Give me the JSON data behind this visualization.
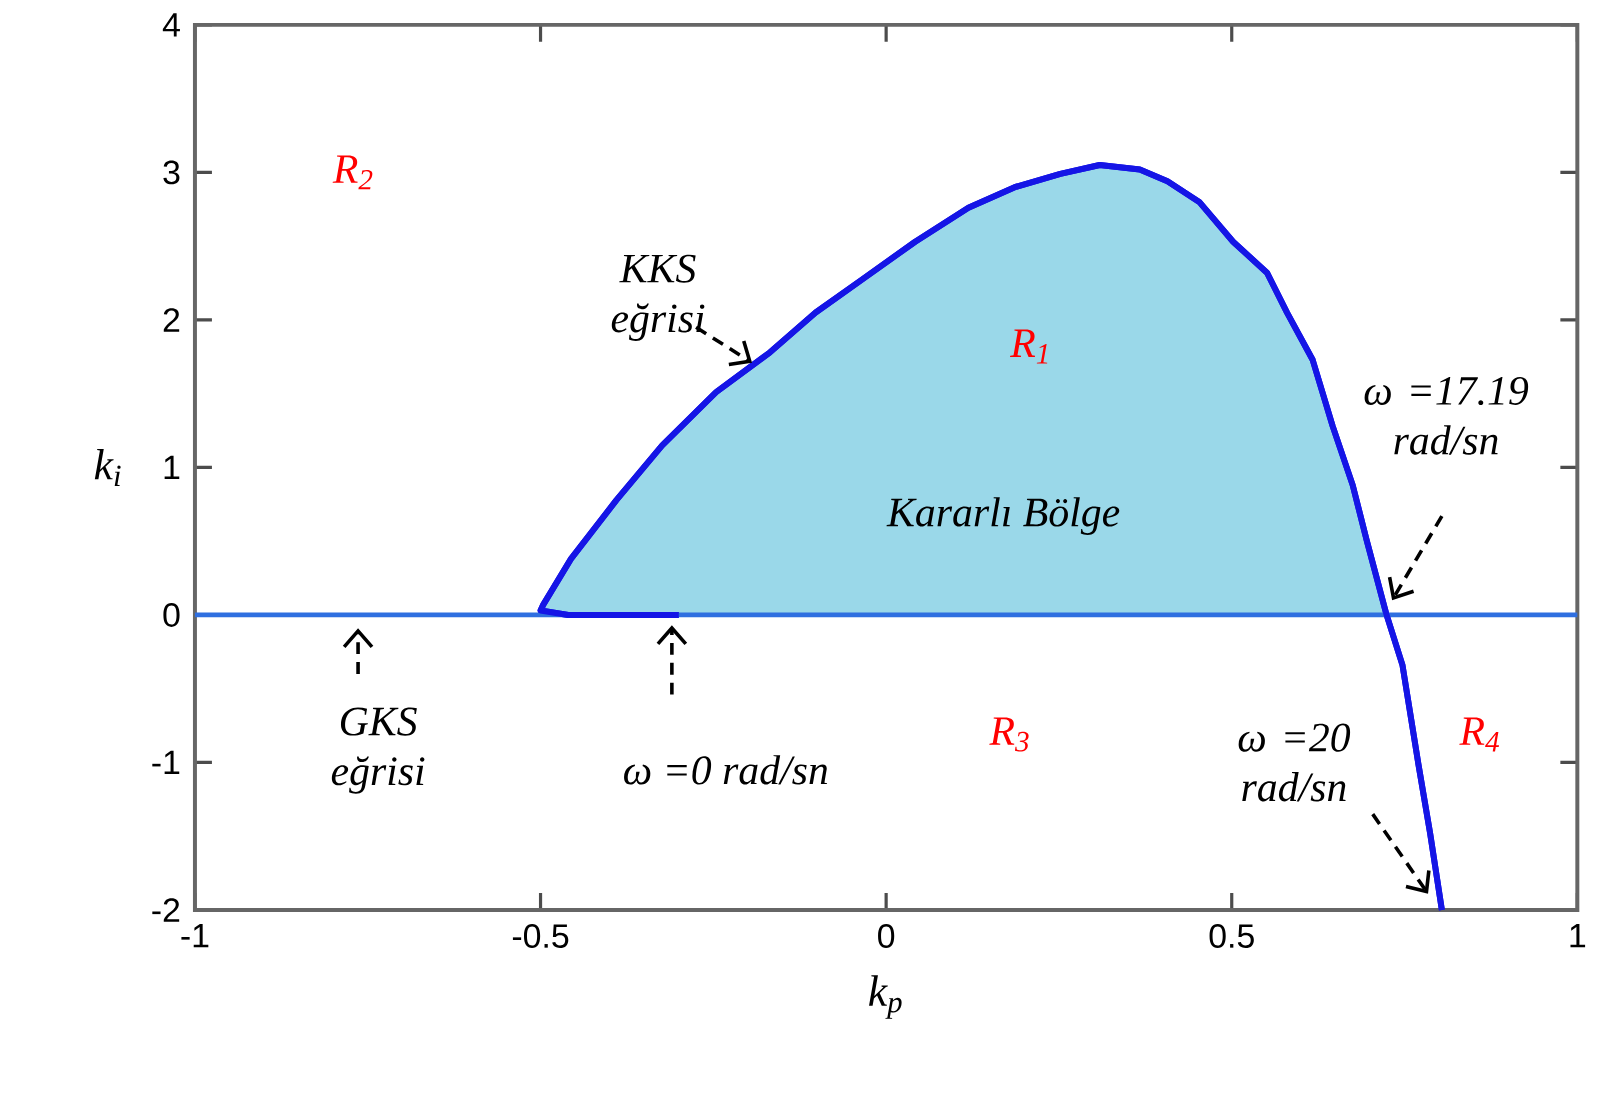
{
  "chart_data": {
    "type": "line",
    "xlabel": "k$_{p}$",
    "ylabel": "k$_{i}$",
    "xlim": [
      -1,
      1
    ],
    "ylim": [
      -2,
      4
    ],
    "xticks": [
      -1,
      -0.5,
      0,
      0.5,
      1
    ],
    "yticks": [
      -2,
      -1,
      0,
      1,
      2,
      3,
      4
    ],
    "series": [
      {
        "type": "area",
        "color": "#9ad8e9",
        "x": [
          -0.5,
          -0.496,
          -0.456,
          -0.39,
          -0.324,
          -0.246,
          -0.168,
          -0.102,
          -0.036,
          0.042,
          0.119,
          0.186,
          0.252,
          0.309,
          0.367,
          0.407,
          0.453,
          0.502,
          0.551,
          0.58,
          0.617,
          0.646,
          0.675,
          0.695,
          0.724
        ],
        "values": [
          0,
          0.07,
          0.38,
          0.78,
          1.15,
          1.51,
          1.78,
          2.05,
          2.27,
          2.53,
          2.76,
          2.9,
          2.99,
          3.05,
          3.02,
          2.94,
          2.8,
          2.53,
          2.32,
          2.05,
          1.73,
          1.28,
          0.88,
          0.51,
          0
        ]
      },
      {
        "color": "#1515e6",
        "x": [
          -0.3,
          -0.46,
          -0.5,
          -0.496,
          -0.456,
          -0.39,
          -0.324,
          -0.246,
          -0.168,
          -0.102,
          -0.036,
          0.042,
          0.119,
          0.186,
          0.252,
          0.309,
          0.367,
          0.407,
          0.453,
          0.502,
          0.551,
          0.58,
          0.617,
          0.646,
          0.675,
          0.695,
          0.724,
          0.747,
          0.77,
          0.787,
          0.804
        ],
        "values": [
          0,
          0,
          0.03,
          0.07,
          0.38,
          0.78,
          1.15,
          1.51,
          1.78,
          2.05,
          2.27,
          2.53,
          2.76,
          2.9,
          2.99,
          3.05,
          3.02,
          2.94,
          2.8,
          2.53,
          2.32,
          2.05,
          1.73,
          1.28,
          0.88,
          0.51,
          0,
          -0.34,
          -1.01,
          -1.48,
          -2
        ]
      }
    ],
    "ref_lines": [
      {
        "axis": "y",
        "value": 0,
        "color": "#2f6fe0"
      }
    ],
    "annotations": [
      "R$_{2}$",
      "KKS eğrisi",
      "R$_{1}$",
      "Kararlı Bölge",
      "ω =17.19 rad/sn",
      "GKS eğrisi",
      "ω =0 rad/sn",
      "R$_{3}$",
      "ω =20 rad/sn",
      "R$_{4}$"
    ]
  }
}
